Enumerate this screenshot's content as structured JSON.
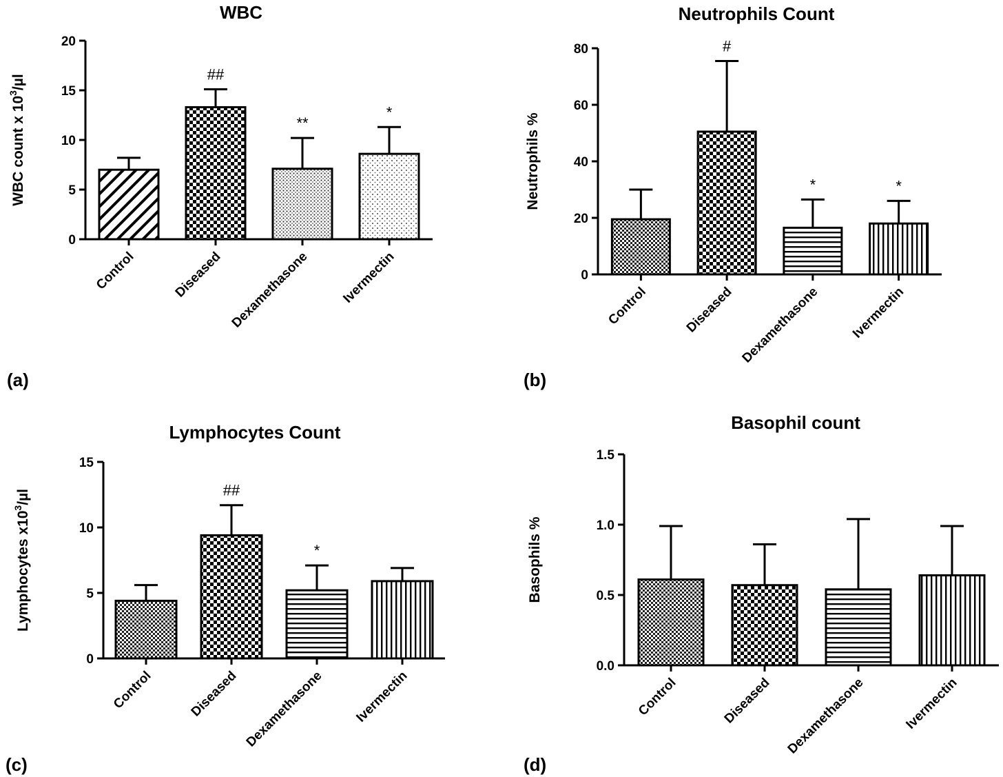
{
  "figure": {
    "categories": [
      "Control",
      "Diseased",
      "Dexamethasone",
      "Ivermectin"
    ]
  },
  "chart_data": [
    {
      "type": "bar",
      "panel_label": "(a)",
      "title": "WBC",
      "ylabel": "WBC count x 10",
      "ylabel_sup": "3",
      "ylabel_tail": "/µl",
      "ylim": [
        0,
        20
      ],
      "yticks": [
        0,
        5,
        10,
        15,
        20
      ],
      "categories": [
        "Control",
        "Diseased",
        "Dexamethasone",
        "Ivermectin"
      ],
      "values": [
        7.0,
        13.3,
        7.1,
        8.6
      ],
      "errors": [
        1.2,
        1.8,
        3.1,
        2.7
      ],
      "significance": [
        "",
        "##",
        "**",
        "*"
      ],
      "patterns": [
        "diag",
        "checker",
        "dots-dense",
        "dots-sparse"
      ]
    },
    {
      "type": "bar",
      "panel_label": "(b)",
      "title": "Neutrophils Count",
      "ylabel": "Neutrophils %",
      "ylim": [
        0,
        80
      ],
      "yticks": [
        0,
        20,
        40,
        60,
        80
      ],
      "categories": [
        "Control",
        "Diseased",
        "Dexamethasone",
        "Ivermectin"
      ],
      "values": [
        19.5,
        50.5,
        16.5,
        18.0
      ],
      "errors": [
        10.5,
        25.0,
        10.0,
        8.0
      ],
      "significance": [
        "",
        "#",
        "*",
        "*"
      ],
      "patterns": [
        "fine-check",
        "checker",
        "hlines",
        "vlines"
      ]
    },
    {
      "type": "bar",
      "panel_label": "(c)",
      "title": "Lymphocytes Count",
      "ylabel": "Lymphocytes x10",
      "ylabel_sup": "3",
      "ylabel_tail": "/µl",
      "ylim": [
        0,
        15
      ],
      "yticks": [
        0,
        5,
        10,
        15
      ],
      "categories": [
        "Control",
        "Diseased",
        "Dexamethasone",
        "Ivermectin"
      ],
      "values": [
        4.4,
        9.4,
        5.2,
        5.9
      ],
      "errors": [
        1.2,
        2.3,
        1.9,
        1.0
      ],
      "significance": [
        "",
        "##",
        "*",
        ""
      ],
      "patterns": [
        "fine-check",
        "checker",
        "hlines",
        "vlines"
      ]
    },
    {
      "type": "bar",
      "panel_label": "(d)",
      "title": "Basophil count",
      "ylabel": "Basophils %",
      "ylim": [
        0,
        1.5
      ],
      "yticks": [
        "0.0",
        "0.5",
        "1.0",
        "1.5"
      ],
      "categories": [
        "Control",
        "Diseased",
        "Dexamethasone",
        "Ivermectin"
      ],
      "values": [
        0.61,
        0.57,
        0.54,
        0.64
      ],
      "errors": [
        0.38,
        0.29,
        0.5,
        0.35
      ],
      "significance": [
        "",
        "",
        "",
        ""
      ],
      "patterns": [
        "fine-check",
        "checker",
        "hlines",
        "vlines"
      ]
    }
  ]
}
